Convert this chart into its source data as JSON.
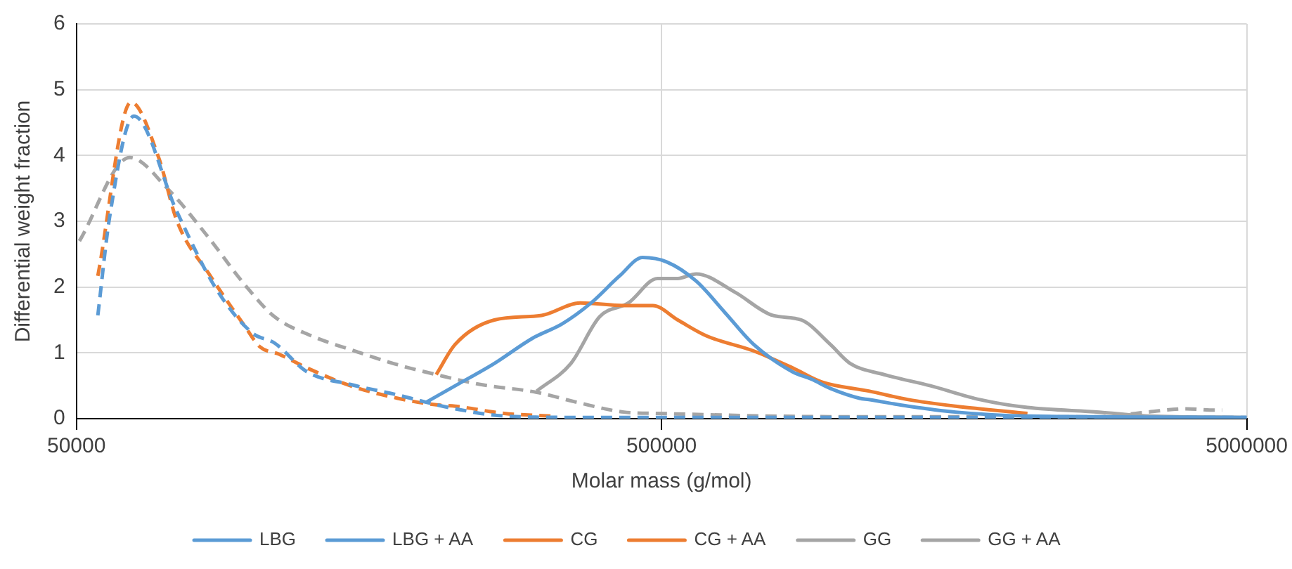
{
  "chart_data": {
    "type": "line",
    "xlabel": "Molar mass (g/mol)",
    "ylabel": "Differential weight fraction",
    "log": "x",
    "grid": true,
    "legend": "bottom",
    "marker": "none",
    "xlim": [
      50000,
      5000000
    ],
    "xticks": [
      50000,
      500000,
      5000000
    ],
    "ylim": [
      0,
      6
    ],
    "yticks": [
      0,
      1,
      2,
      3,
      4,
      5,
      6
    ],
    "series": [
      {
        "name": "LBG",
        "color": "#5b9bd5",
        "line_style": "solid",
        "x": [
          198000,
          222000,
          259000,
          302000,
          338000,
          379000,
          424000,
          464000,
          511000,
          573000,
          642000,
          718000,
          838000,
          902000,
          971000,
          1090000,
          1130000,
          1320000,
          1590000,
          2110000,
          5000000
        ],
        "values": [
          0.25,
          0.5,
          0.84,
          1.23,
          1.44,
          1.76,
          2.17,
          2.45,
          2.38,
          2.09,
          1.61,
          1.13,
          0.71,
          0.6,
          0.46,
          0.31,
          0.29,
          0.19,
          0.1,
          0.04,
          0.02
        ]
      },
      {
        "name": "LBG + AA",
        "color": "#5b9bd5",
        "line_style": "dashed",
        "x": [
          54400,
          57000,
          62700,
          74300,
          86700,
          100000,
          109000,
          124000,
          147000,
          177000,
          198000,
          222000,
          269000,
          350000,
          5000000
        ],
        "values": [
          1.57,
          3.07,
          4.6,
          3.14,
          1.97,
          1.3,
          1.15,
          0.71,
          0.52,
          0.36,
          0.25,
          0.15,
          0.04,
          0.02,
          0.02
        ]
      },
      {
        "name": "CG",
        "color": "#ed7d31",
        "line_style": "solid",
        "x": [
          206000,
          222000,
          259000,
          312000,
          363000,
          431000,
          483000,
          533000,
          596000,
          718000,
          838000,
          938000,
          1130000,
          1320000,
          1590000,
          2110000
        ],
        "values": [
          0.67,
          1.13,
          1.5,
          1.57,
          1.76,
          1.72,
          1.72,
          1.5,
          1.26,
          1.03,
          0.77,
          0.56,
          0.42,
          0.29,
          0.19,
          0.08
        ]
      },
      {
        "name": "CG + AA",
        "color": "#ed7d31",
        "line_style": "dashed",
        "x": [
          54400,
          62000,
          69100,
          74300,
          84700,
          97100,
          103000,
          111000,
          124000,
          147000,
          177000,
          206000,
          222000,
          269000,
          325000
        ],
        "values": [
          2.17,
          4.81,
          3.97,
          3.0,
          2.17,
          1.4,
          1.09,
          0.98,
          0.77,
          0.5,
          0.31,
          0.21,
          0.19,
          0.08,
          0.04
        ]
      },
      {
        "name": "GG",
        "color": "#a5a5a5",
        "line_style": "solid",
        "x": [
          306000,
          350000,
          392000,
          439000,
          492000,
          533000,
          573000,
          668000,
          774000,
          867000,
          971000,
          1050000,
          1200000,
          1440000,
          1750000,
          2110000,
          2800000,
          3380000,
          5000000
        ],
        "values": [
          0.42,
          0.84,
          1.55,
          1.76,
          2.13,
          2.13,
          2.2,
          1.92,
          1.57,
          1.5,
          1.13,
          0.84,
          0.67,
          0.5,
          0.29,
          0.17,
          0.1,
          0.04,
          0.02
        ]
      },
      {
        "name": "GG + AA",
        "color": "#a5a5a5",
        "line_style": "dashed",
        "x": [
          50600,
          61700,
          71500,
          83300,
          97100,
          109000,
          126000,
          147000,
          177000,
          206000,
          245000,
          306000,
          358000,
          431000,
          492000,
          1000000,
          2800000,
          3380000,
          3940000,
          4410000,
          4540000
        ],
        "values": [
          2.7,
          3.97,
          3.5,
          2.8,
          2.03,
          1.55,
          1.26,
          1.05,
          0.82,
          0.67,
          0.52,
          0.4,
          0.25,
          0.1,
          0.08,
          0.03,
          0.03,
          0.1,
          0.15,
          0.13,
          0.13
        ]
      }
    ]
  }
}
